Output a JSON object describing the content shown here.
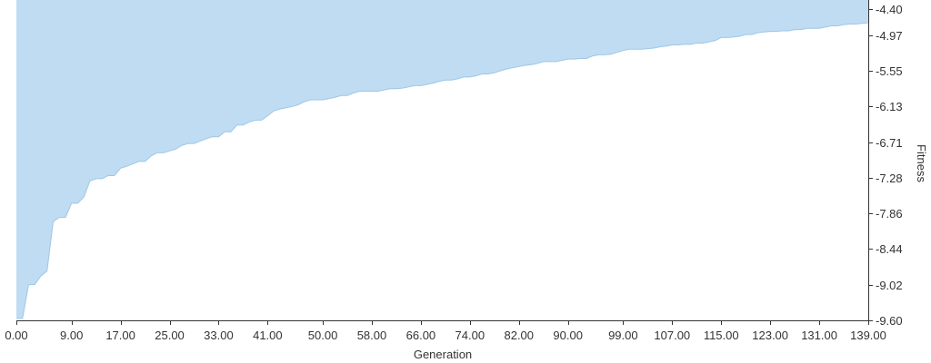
{
  "chart_data": {
    "type": "area",
    "xlabel": "Generation",
    "ylabel": "Fitness",
    "x_tick_labels": [
      "0.00",
      "9.00",
      "17.00",
      "25.00",
      "33.00",
      "41.00",
      "50.00",
      "58.00",
      "66.00",
      "74.00",
      "82.00",
      "90.00",
      "99.00",
      "107.00",
      "115.00",
      "123.00",
      "131.00",
      "139.00"
    ],
    "x_tick_values": [
      0,
      9,
      17,
      25,
      33,
      41,
      50,
      58,
      66,
      74,
      82,
      90,
      99,
      107,
      115,
      123,
      131,
      139
    ],
    "y_tick_labels": [
      "-4.40",
      "-4.97",
      "-5.55",
      "-6.13",
      "-6.71",
      "-7.28",
      "-7.86",
      "-8.44",
      "-9.02",
      "-9.60"
    ],
    "y_tick_values": [
      -4.4,
      -4.97,
      -5.55,
      -6.13,
      -6.71,
      -7.28,
      -7.86,
      -8.44,
      -9.02,
      -9.6
    ],
    "xlim": [
      0,
      139
    ],
    "ylim": [
      -9.6,
      -4.4
    ],
    "y_axis_position": "right",
    "grid": false,
    "fill_color": "#bfdcf3",
    "line_color": "#9ec7e8",
    "fill_direction": "top",
    "series": [
      {
        "x": [
          0,
          1,
          2,
          3,
          4,
          5,
          6,
          7,
          8,
          9,
          10,
          11,
          12,
          13,
          14,
          15,
          16,
          17,
          18,
          19,
          20,
          21,
          22,
          23,
          24,
          25,
          26,
          27,
          28,
          29,
          30,
          31,
          32,
          33,
          34,
          35,
          36,
          37,
          38,
          39,
          40,
          41,
          42,
          43,
          44,
          45,
          46,
          47,
          48,
          49,
          50,
          51,
          52,
          53,
          54,
          55,
          56,
          57,
          58,
          59,
          60,
          61,
          62,
          63,
          64,
          65,
          66,
          67,
          68,
          69,
          70,
          71,
          72,
          73,
          74,
          75,
          76,
          77,
          78,
          79,
          80,
          81,
          82,
          83,
          84,
          85,
          86,
          87,
          88,
          89,
          90,
          91,
          92,
          93,
          94,
          95,
          96,
          97,
          98,
          99,
          100,
          101,
          102,
          103,
          104,
          105,
          106,
          107,
          108,
          109,
          110,
          111,
          112,
          113,
          114,
          115,
          116,
          117,
          118,
          119,
          120,
          121,
          122,
          123,
          124,
          125,
          126,
          127,
          128,
          129,
          130,
          131,
          132,
          133,
          134,
          135,
          136,
          137,
          138,
          139
        ],
        "values": [
          -9.57,
          -9.57,
          -9.02,
          -9.02,
          -8.88,
          -8.8,
          -8.0,
          -7.93,
          -7.93,
          -7.7,
          -7.7,
          -7.6,
          -7.34,
          -7.3,
          -7.3,
          -7.25,
          -7.25,
          -7.13,
          -7.1,
          -7.06,
          -7.02,
          -7.02,
          -6.93,
          -6.88,
          -6.88,
          -6.85,
          -6.82,
          -6.76,
          -6.73,
          -6.73,
          -6.69,
          -6.65,
          -6.62,
          -6.62,
          -6.54,
          -6.54,
          -6.43,
          -6.43,
          -6.38,
          -6.35,
          -6.35,
          -6.28,
          -6.2,
          -6.17,
          -6.15,
          -6.13,
          -6.1,
          -6.05,
          -6.02,
          -6.02,
          -6.02,
          -6.0,
          -5.98,
          -5.95,
          -5.95,
          -5.91,
          -5.88,
          -5.88,
          -5.88,
          -5.88,
          -5.86,
          -5.84,
          -5.84,
          -5.83,
          -5.81,
          -5.79,
          -5.79,
          -5.77,
          -5.75,
          -5.72,
          -5.7,
          -5.7,
          -5.68,
          -5.65,
          -5.65,
          -5.63,
          -5.6,
          -5.6,
          -5.58,
          -5.55,
          -5.52,
          -5.5,
          -5.48,
          -5.46,
          -5.45,
          -5.43,
          -5.4,
          -5.4,
          -5.4,
          -5.38,
          -5.36,
          -5.36,
          -5.35,
          -5.35,
          -5.31,
          -5.29,
          -5.29,
          -5.28,
          -5.25,
          -5.22,
          -5.2,
          -5.2,
          -5.2,
          -5.19,
          -5.18,
          -5.16,
          -5.15,
          -5.13,
          -5.13,
          -5.12,
          -5.12,
          -5.1,
          -5.1,
          -5.08,
          -5.06,
          -5.01,
          -5.01,
          -5.0,
          -4.99,
          -4.96,
          -4.96,
          -4.93,
          -4.92,
          -4.91,
          -4.91,
          -4.9,
          -4.9,
          -4.88,
          -4.88,
          -4.86,
          -4.86,
          -4.86,
          -4.84,
          -4.82,
          -4.82,
          -4.8,
          -4.79,
          -4.79,
          -4.78,
          -4.77
        ]
      }
    ]
  }
}
